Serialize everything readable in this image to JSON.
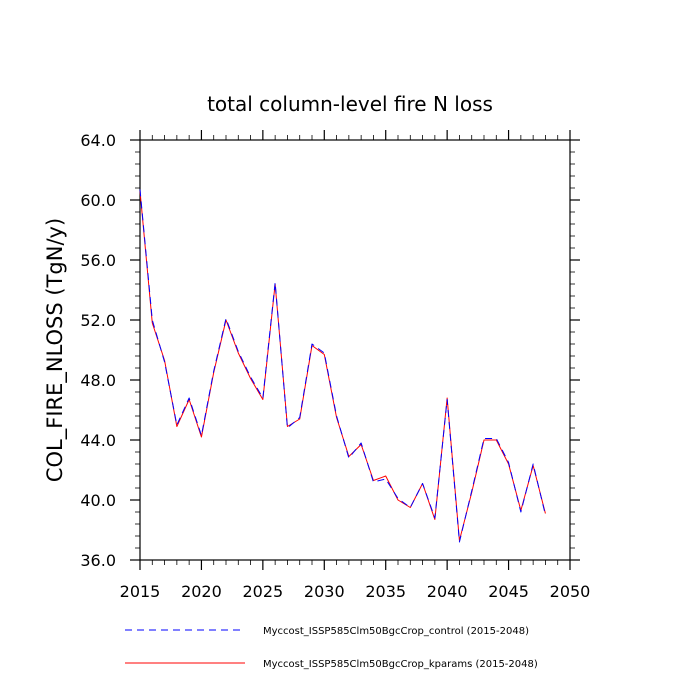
{
  "chart_data": {
    "type": "line",
    "title": "total column-level fire N loss",
    "xlabel": "",
    "ylabel": "COL_FIRE_NLOSS  (TgN/y)",
    "xlim": [
      2015,
      2050
    ],
    "ylim": [
      36.0,
      64.0
    ],
    "x_ticks": [
      2015,
      2020,
      2025,
      2030,
      2035,
      2040,
      2045,
      2050
    ],
    "x_tick_labels": [
      "2015",
      "2020",
      "2025",
      "2030",
      "2035",
      "2040",
      "2045",
      "2050"
    ],
    "y_ticks": [
      36,
      40,
      44,
      48,
      52,
      56,
      60,
      64
    ],
    "y_tick_labels": [
      "36.0",
      "40.0",
      "44.0",
      "48.0",
      "52.0",
      "56.0",
      "60.0",
      "64.0"
    ],
    "grid": false,
    "legend_position": "bottom",
    "x": [
      2015,
      2016,
      2017,
      2018,
      2019,
      2020,
      2021,
      2022,
      2023,
      2024,
      2025,
      2026,
      2027,
      2028,
      2029,
      2030,
      2031,
      2032,
      2033,
      2034,
      2035,
      2036,
      2037,
      2038,
      2039,
      2040,
      2041,
      2042,
      2043,
      2044,
      2045,
      2046,
      2047,
      2048
    ],
    "series": [
      {
        "name": "Myccost_ISSP585Clm50BgcCrop_control (2015-2048)",
        "color": "#0000ff",
        "style": "dashed",
        "values": [
          60.7,
          52.0,
          49.2,
          45.0,
          46.8,
          44.3,
          48.6,
          52.1,
          49.9,
          48.2,
          46.8,
          54.5,
          44.8,
          45.5,
          50.4,
          49.8,
          45.6,
          42.8,
          43.8,
          41.2,
          41.4,
          40.1,
          39.5,
          41.1,
          38.8,
          46.7,
          37.2,
          40.6,
          44.1,
          44.1,
          42.5,
          39.2,
          42.4,
          39.0
        ]
      },
      {
        "name": "Myccost_ISSP585Clm50BgcCrop_kparams (2015-2048)",
        "color": "#ff0000",
        "style": "solid",
        "values": [
          60.6,
          51.8,
          49.3,
          44.9,
          46.7,
          44.2,
          48.5,
          52.0,
          49.8,
          48.1,
          46.7,
          54.4,
          44.9,
          45.4,
          50.3,
          49.7,
          45.5,
          42.9,
          43.7,
          41.3,
          41.6,
          40.0,
          39.5,
          41.1,
          38.7,
          46.8,
          37.3,
          40.5,
          44.0,
          44.0,
          42.4,
          39.3,
          42.3,
          39.1
        ]
      }
    ]
  }
}
